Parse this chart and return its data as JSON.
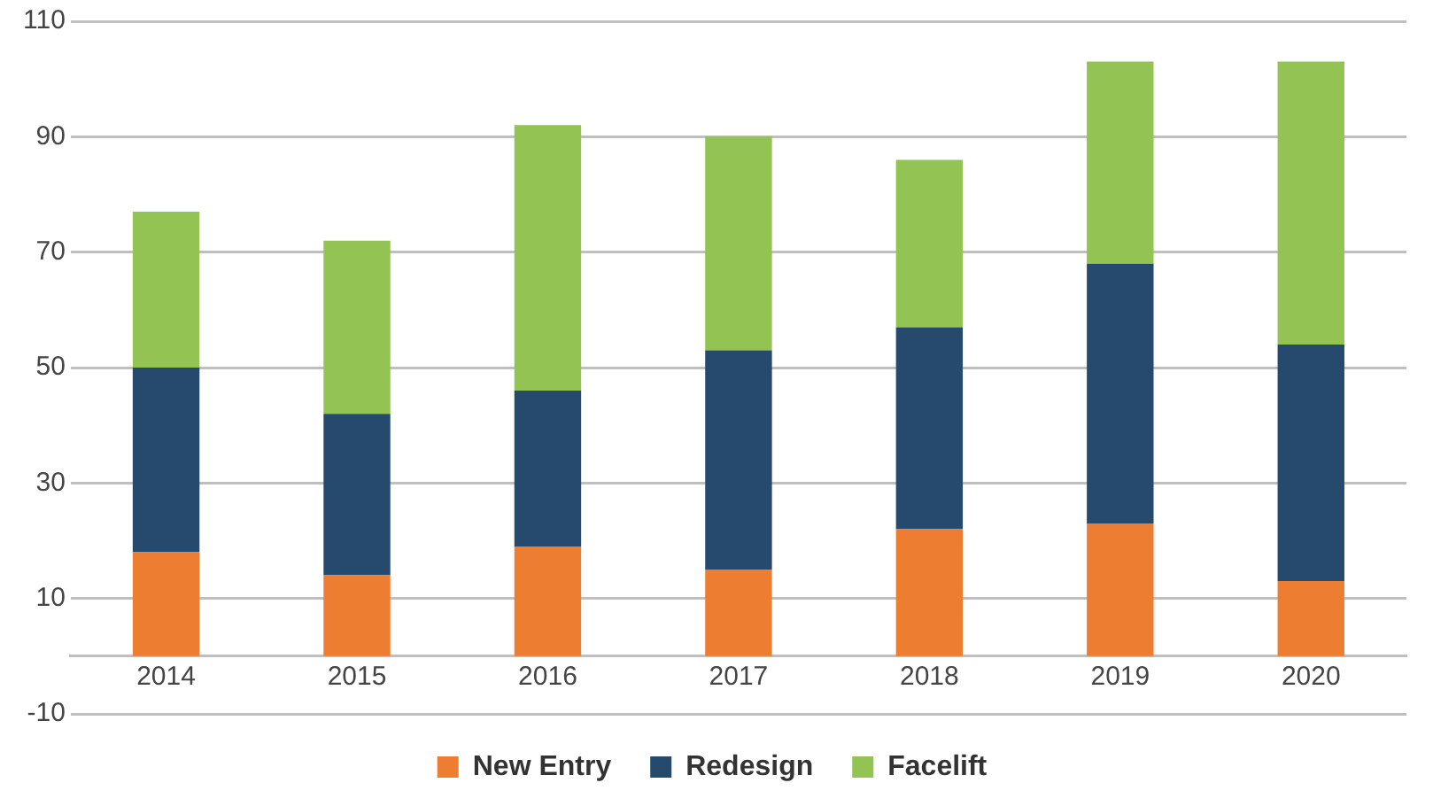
{
  "chart_data": {
    "type": "bar",
    "stacked": true,
    "categories": [
      "2014",
      "2015",
      "2016",
      "2017",
      "2018",
      "2019",
      "2020"
    ],
    "series": [
      {
        "name": "New Entry",
        "color": "#ed7d31",
        "values": [
          18,
          14,
          19,
          15,
          22,
          23,
          13
        ]
      },
      {
        "name": "Redesign",
        "color": "#264a6e",
        "values": [
          32,
          28,
          27,
          38,
          35,
          45,
          41
        ]
      },
      {
        "name": "Facelift",
        "color": "#92c353",
        "values": [
          27,
          30,
          46,
          37,
          29,
          35,
          49
        ]
      }
    ],
    "ylim": [
      -10,
      110
    ],
    "yticks": [
      -10,
      10,
      30,
      50,
      70,
      90,
      110
    ],
    "grid": "y",
    "legend": "bottom"
  }
}
